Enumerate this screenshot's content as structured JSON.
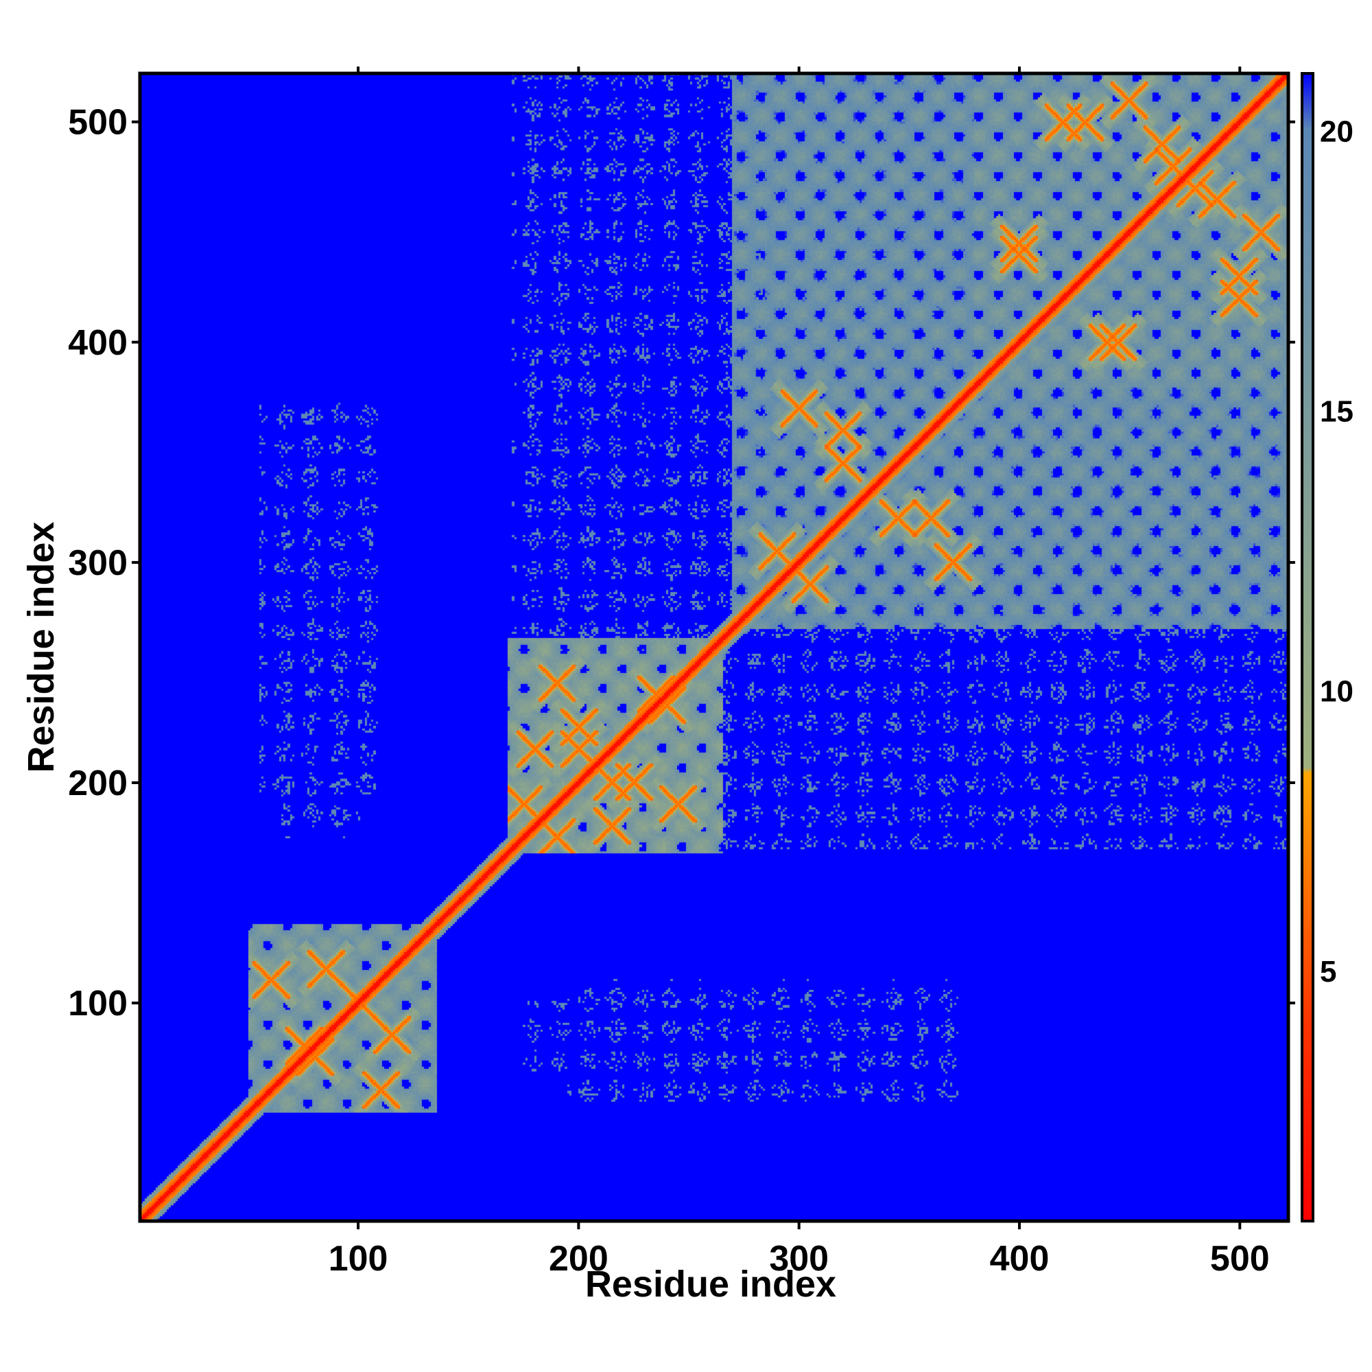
{
  "chart_data": {
    "type": "heatmap",
    "title": "",
    "xlabel": "Residue index",
    "ylabel": "Residue index",
    "xlim": [
      1,
      522
    ],
    "ylim": [
      1,
      522
    ],
    "x_ticks": [
      100,
      200,
      300,
      400,
      500
    ],
    "y_ticks": [
      100,
      200,
      300,
      400,
      500
    ],
    "x_tick_labels": [
      "100",
      "200",
      "300",
      "400",
      "500"
    ],
    "y_tick_labels": [
      "100",
      "200",
      "300",
      "400",
      "500"
    ],
    "colorbar": {
      "range": [
        0.5,
        21
      ],
      "ticks": [
        5,
        10,
        15,
        20
      ],
      "tick_labels": [
        "5",
        "10",
        "15",
        "20"
      ],
      "stops": [
        {
          "value": 0.5,
          "color": "#ff0000"
        },
        {
          "value": 4,
          "color": "#ff3300"
        },
        {
          "value": 8.5,
          "color": "#ffa500"
        },
        {
          "value": 8.6,
          "color": "#9fb07e"
        },
        {
          "value": 20,
          "color": "#5c88b5"
        },
        {
          "value": 21,
          "color": "#0000ff"
        }
      ]
    },
    "colors": {
      "background": "#0000ff",
      "contact": "#5c88b5",
      "near": "#9fb07e",
      "close": "#ff8c00",
      "diagonal": "#ff0000"
    },
    "domains": [
      {
        "start": 50,
        "end": 135,
        "level": 15,
        "crossings": [
          [
            75,
            80
          ],
          [
            100,
            100
          ],
          [
            115,
            85
          ],
          [
            60,
            110
          ]
        ]
      },
      {
        "start": 168,
        "end": 265,
        "level": 14,
        "crossings": [
          [
            175,
            190
          ],
          [
            200,
            215
          ],
          [
            225,
            200
          ],
          [
            235,
            240
          ],
          [
            215,
            180
          ],
          [
            190,
            245
          ]
        ]
      },
      {
        "start": 270,
        "end": 525,
        "level": 17,
        "crossings": [
          [
            290,
            305
          ],
          [
            320,
            345
          ],
          [
            360,
            320
          ],
          [
            300,
            370
          ],
          [
            400,
            445
          ],
          [
            440,
            400
          ],
          [
            480,
            470
          ],
          [
            500,
            430
          ]
        ]
      },
      {
        "start": 380,
        "end": 525,
        "level": 16,
        "crossings": [
          [
            420,
            500
          ],
          [
            465,
            490
          ],
          [
            510,
            450
          ]
        ]
      }
    ],
    "sparse_patches": [
      {
        "x": [
          170,
          285
        ],
        "y": [
          260,
          475
        ],
        "level": 19.5
      },
      {
        "x": [
          270,
          525
        ],
        "y": [
          170,
          275
        ],
        "level": 19.5
      },
      {
        "x": [
          55,
          110
        ],
        "y": [
          195,
          300
        ],
        "level": 19.8
      },
      {
        "x": [
          175,
          245
        ],
        "y": [
          65,
          100
        ],
        "level": 19.8
      },
      {
        "x": [
          275,
          375
        ],
        "y": [
          55,
          110
        ],
        "level": 19.8
      }
    ]
  }
}
